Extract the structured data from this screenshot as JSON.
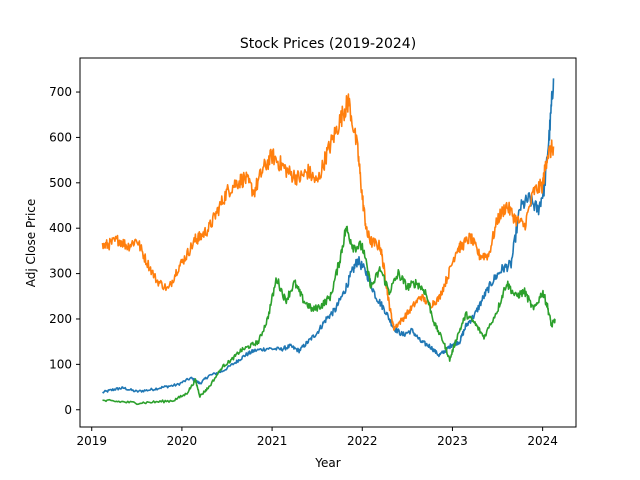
{
  "chart_data": {
    "type": "line",
    "title": "Stock Prices (2019-2024)",
    "xlabel": "Year",
    "ylabel": "Adj Close Price",
    "xlim": [
      2018.87,
      2024.37
    ],
    "ylim": [
      -38,
      775
    ],
    "x_ticks": [
      2019,
      2020,
      2021,
      2022,
      2023,
      2024
    ],
    "x_tick_labels": [
      "2019",
      "2020",
      "2021",
      "2022",
      "2023",
      "2024"
    ],
    "y_ticks": [
      0,
      100,
      200,
      300,
      400,
      500,
      600,
      700
    ],
    "y_tick_labels": [
      "0",
      "100",
      "200",
      "300",
      "400",
      "500",
      "600",
      "700"
    ],
    "grid": false,
    "legend": "none",
    "series": [
      {
        "color": "#1f77b4",
        "x": [
          2019.12,
          2019.25,
          2019.35,
          2019.5,
          2019.65,
          2019.8,
          2019.95,
          2020.1,
          2020.2,
          2020.3,
          2020.45,
          2020.6,
          2020.7,
          2020.8,
          2020.95,
          2021.1,
          2021.2,
          2021.3,
          2021.4,
          2021.5,
          2021.6,
          2021.7,
          2021.8,
          2021.88,
          2021.95,
          2022.05,
          2022.15,
          2022.25,
          2022.35,
          2022.45,
          2022.55,
          2022.65,
          2022.75,
          2022.85,
          2022.92,
          2023.0,
          2023.08,
          2023.15,
          2023.25,
          2023.35,
          2023.45,
          2023.55,
          2023.65,
          2023.75,
          2023.85,
          2023.95,
          2024.02,
          2024.08,
          2024.12
        ],
        "y": [
          38,
          45,
          48,
          40,
          44,
          50,
          55,
          70,
          58,
          75,
          85,
          105,
          120,
          130,
          135,
          133,
          140,
          130,
          150,
          170,
          200,
          220,
          260,
          300,
          330,
          300,
          250,
          220,
          180,
          165,
          175,
          150,
          140,
          120,
          130,
          145,
          150,
          185,
          210,
          250,
          285,
          310,
          320,
          445,
          465,
          440,
          490,
          620,
          730
        ]
      },
      {
        "color": "#ff7f0e",
        "x": [
          2019.12,
          2019.2,
          2019.3,
          2019.4,
          2019.5,
          2019.6,
          2019.72,
          2019.85,
          2019.95,
          2020.05,
          2020.15,
          2020.2,
          2020.3,
          2020.4,
          2020.5,
          2020.6,
          2020.7,
          2020.8,
          2020.9,
          2021.0,
          2021.1,
          2021.2,
          2021.3,
          2021.4,
          2021.5,
          2021.6,
          2021.7,
          2021.8,
          2021.85,
          2021.95,
          2022.0,
          2022.05,
          2022.1,
          2022.2,
          2022.25,
          2022.3,
          2022.35,
          2022.45,
          2022.55,
          2022.65,
          2022.75,
          2022.85,
          2022.95,
          2023.05,
          2023.1,
          2023.2,
          2023.3,
          2023.4,
          2023.5,
          2023.6,
          2023.7,
          2023.8,
          2023.9,
          2024.0,
          2024.05,
          2024.12
        ],
        "y": [
          360,
          365,
          375,
          360,
          375,
          330,
          285,
          265,
          310,
          340,
          375,
          380,
          400,
          440,
          480,
          500,
          510,
          480,
          530,
          560,
          540,
          520,
          510,
          525,
          500,
          560,
          610,
          660,
          680,
          570,
          470,
          390,
          370,
          360,
          300,
          230,
          180,
          200,
          225,
          250,
          230,
          245,
          295,
          355,
          360,
          380,
          340,
          340,
          420,
          450,
          420,
          405,
          480,
          495,
          560,
          580
        ]
      },
      {
        "color": "#2ca02c",
        "x": [
          2019.12,
          2019.3,
          2019.5,
          2019.7,
          2019.9,
          2020.05,
          2020.15,
          2020.2,
          2020.3,
          2020.45,
          2020.55,
          2020.65,
          2020.75,
          2020.85,
          2020.95,
          2021.05,
          2021.15,
          2021.25,
          2021.35,
          2021.45,
          2021.55,
          2021.65,
          2021.75,
          2021.82,
          2021.9,
          2022.0,
          2022.1,
          2022.2,
          2022.3,
          2022.4,
          2022.5,
          2022.6,
          2022.7,
          2022.8,
          2022.9,
          2022.97,
          2023.05,
          2023.15,
          2023.25,
          2023.35,
          2023.5,
          2023.6,
          2023.7,
          2023.8,
          2023.9,
          2024.0,
          2024.05,
          2024.1,
          2024.14
        ],
        "y": [
          20,
          18,
          15,
          17,
          20,
          35,
          65,
          30,
          50,
          95,
          110,
          130,
          140,
          150,
          200,
          290,
          240,
          280,
          240,
          220,
          230,
          250,
          330,
          400,
          360,
          360,
          270,
          310,
          260,
          300,
          270,
          280,
          260,
          190,
          150,
          110,
          160,
          210,
          190,
          160,
          220,
          280,
          250,
          260,
          220,
          260,
          230,
          185,
          200
        ]
      }
    ]
  }
}
